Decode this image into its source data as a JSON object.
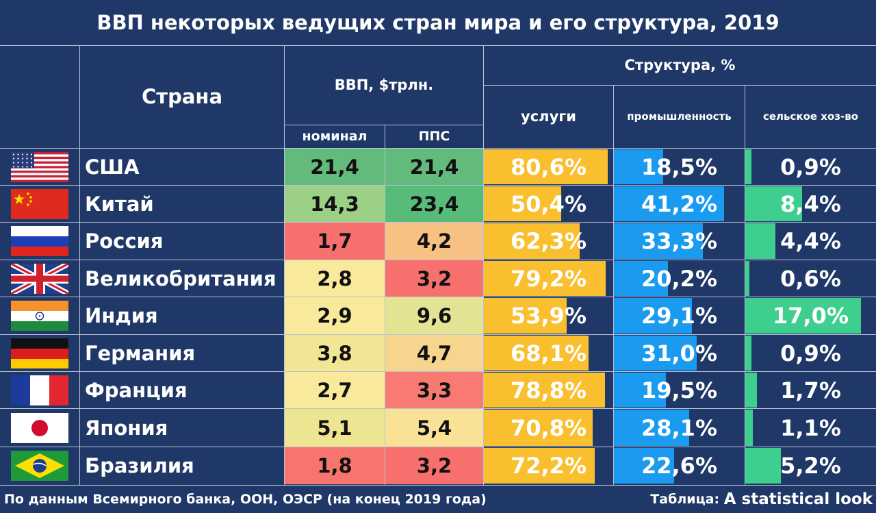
{
  "title": "ВВП некоторых ведущих стран мира и его структура, 2019",
  "headers": {
    "country": "Страна",
    "gdp": "ВВП, $трлн.",
    "nominal": "номинал",
    "ppp": "ППС",
    "structure": "Структура, %",
    "services": "услуги",
    "industry": "промышленность",
    "agriculture": "сельское хоз-во"
  },
  "colors": {
    "background": "#1f3868",
    "services_bar": "#f9bf2f",
    "industry_bar": "#1a9bf0",
    "agriculture_bar": "#3ecf8e",
    "gdp_high": "#57bb7a",
    "gdp_mid": "#f9e99a",
    "gdp_low": "#f87170"
  },
  "chart_data": {
    "type": "table",
    "title": "ВВП некоторых ведущих стран мира и его структура, 2019",
    "columns": [
      "Страна",
      "номинал",
      "ППС",
      "услуги",
      "промышленность",
      "сельское хоз-во"
    ],
    "rows": [
      {
        "country": "США",
        "flag": "usa-flag",
        "nominal": "21,4",
        "ppp": "21,4",
        "services": "80,6%",
        "industry": "18,5%",
        "agriculture": "0,9%",
        "nominal_bg": "#62bb7c",
        "ppp_bg": "#62bb7c",
        "services_v": 80.6,
        "industry_v": 18.5,
        "agriculture_v": 0.9
      },
      {
        "country": "Китай",
        "flag": "china-flag",
        "nominal": "14,3",
        "ppp": "23,4",
        "services": "50,4%",
        "industry": "41,2%",
        "agriculture": "8,4%",
        "nominal_bg": "#9bd086",
        "ppp_bg": "#57bb7a",
        "services_v": 50.4,
        "industry_v": 41.2,
        "agriculture_v": 8.4
      },
      {
        "country": "Россия",
        "flag": "russia-flag",
        "nominal": "1,7",
        "ppp": "4,2",
        "services": "62,3%",
        "industry": "33,3%",
        "agriculture": "4,4%",
        "nominal_bg": "#f8706e",
        "ppp_bg": "#f7c184",
        "services_v": 62.3,
        "industry_v": 33.3,
        "agriculture_v": 4.4
      },
      {
        "country": "Великобритания",
        "flag": "uk-flag",
        "nominal": "2,8",
        "ppp": "3,2",
        "services": "79,2%",
        "industry": "20,2%",
        "agriculture": "0,6%",
        "nominal_bg": "#f9e99a",
        "ppp_bg": "#f8706e",
        "services_v": 79.2,
        "industry_v": 20.2,
        "agriculture_v": 0.6
      },
      {
        "country": "Индия",
        "flag": "india-flag",
        "nominal": "2,9",
        "ppp": "9,6",
        "services": "53,9%",
        "industry": "29,1%",
        "agriculture": "17,0%",
        "nominal_bg": "#f9e99a",
        "ppp_bg": "#e4e393",
        "services_v": 53.9,
        "industry_v": 29.1,
        "agriculture_v": 17.0
      },
      {
        "country": "Германия",
        "flag": "germany-flag",
        "nominal": "3,8",
        "ppp": "4,7",
        "services": "68,1%",
        "industry": "31,0%",
        "agriculture": "0,9%",
        "nominal_bg": "#f2e594",
        "ppp_bg": "#f7d58e",
        "services_v": 68.1,
        "industry_v": 31.0,
        "agriculture_v": 0.9
      },
      {
        "country": "Франция",
        "flag": "france-flag",
        "nominal": "2,7",
        "ppp": "3,3",
        "services": "78,8%",
        "industry": "19,5%",
        "agriculture": "1,7%",
        "nominal_bg": "#f9e99a",
        "ppp_bg": "#f87a72",
        "services_v": 78.8,
        "industry_v": 19.5,
        "agriculture_v": 1.7
      },
      {
        "country": "Япония",
        "flag": "japan-flag",
        "nominal": "5,1",
        "ppp": "5,4",
        "services": "70,8%",
        "industry": "28,1%",
        "agriculture": "1,1%",
        "nominal_bg": "#eee592",
        "ppp_bg": "#f9e296",
        "services_v": 70.8,
        "industry_v": 28.1,
        "agriculture_v": 1.1
      },
      {
        "country": "Бразилия",
        "flag": "brazil-flag",
        "nominal": "1,8",
        "ppp": "3,2",
        "services": "72,2%",
        "industry": "22,6%",
        "agriculture": "5,2%",
        "nominal_bg": "#f8756f",
        "ppp_bg": "#f8706e",
        "services_v": 72.2,
        "industry_v": 22.6,
        "agriculture_v": 5.2
      }
    ]
  },
  "footer": {
    "source": "По данным Всемирного банка, ООН, ОЭСР (на конец 2019 года)",
    "credit_prefix": "Таблица: ",
    "credit_name": "A statistical look"
  }
}
